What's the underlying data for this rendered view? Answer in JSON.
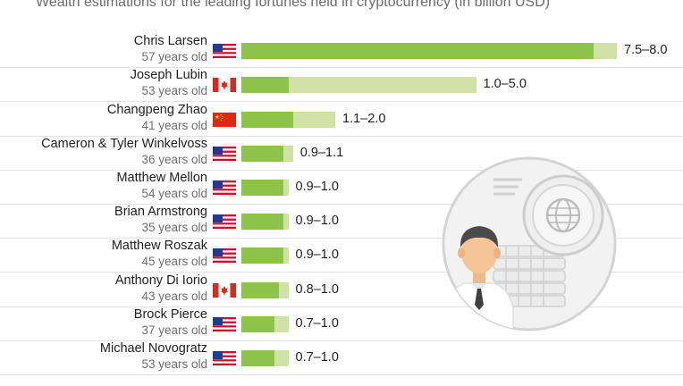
{
  "subtitle": "Wealth estimations for the leading fortunes held in cryptocurrency (in billion USD)",
  "chart_data": {
    "type": "bar",
    "orientation": "horizontal",
    "subtitle": "Wealth estimations for the leading fortunes held in cryptocurrency (in billion USD)",
    "unit": "billion USD",
    "categories": [
      "Chris Larsen",
      "Joseph Lubin",
      "Changpeng Zhao",
      "Cameron & Tyler Winkelvoss",
      "Matthew Mellon",
      "Brian Armstrong",
      "Matthew Roszak",
      "Anthony Di Iorio",
      "Brock Pierce",
      "Michael Novogratz"
    ],
    "rows": [
      {
        "name": "Chris Larsen",
        "age": "57 years old",
        "flag": "us-flag-icon",
        "low": 7.5,
        "high": 8.0,
        "label": "7.5–8.0"
      },
      {
        "name": "Joseph Lubin",
        "age": "53 years old",
        "flag": "canada-flag-icon",
        "low": 1.0,
        "high": 5.0,
        "label": "1.0–5.0"
      },
      {
        "name": "Changpeng Zhao",
        "age": "41 years old",
        "flag": "china-flag-icon",
        "low": 1.1,
        "high": 2.0,
        "label": "1.1–2.0"
      },
      {
        "name": "Cameron & Tyler Winkelvoss",
        "age": "36 years old",
        "flag": "us-flag-icon",
        "low": 0.9,
        "high": 1.1,
        "label": "0.9–1.1"
      },
      {
        "name": "Matthew Mellon",
        "age": "54 years old",
        "flag": "us-flag-icon",
        "low": 0.9,
        "high": 1.0,
        "label": "0.9–1.0"
      },
      {
        "name": "Brian Armstrong",
        "age": "35 years old",
        "flag": "us-flag-icon",
        "low": 0.9,
        "high": 1.0,
        "label": "0.9–1.0"
      },
      {
        "name": "Matthew Roszak",
        "age": "45 years old",
        "flag": "us-flag-icon",
        "low": 0.9,
        "high": 1.0,
        "label": "0.9–1.0"
      },
      {
        "name": "Anthony Di Iorio",
        "age": "43 years old",
        "flag": "canada-flag-icon",
        "low": 0.8,
        "high": 1.0,
        "label": "0.8–1.0"
      },
      {
        "name": "Brock Pierce",
        "age": "37 years old",
        "flag": "us-flag-icon",
        "low": 0.7,
        "high": 1.0,
        "label": "0.7–1.0"
      },
      {
        "name": "Michael Novogratz",
        "age": "53 years old",
        "flag": "us-flag-icon",
        "low": 0.7,
        "high": 1.0,
        "label": "0.7–1.0"
      }
    ],
    "xlim": [
      0,
      8.0
    ],
    "colors": {
      "low": "#8dc34a",
      "range": "#cfe3a6"
    },
    "legend": "none",
    "grid": false
  },
  "illustration": {
    "icon": "crypto-investor-illustration"
  }
}
